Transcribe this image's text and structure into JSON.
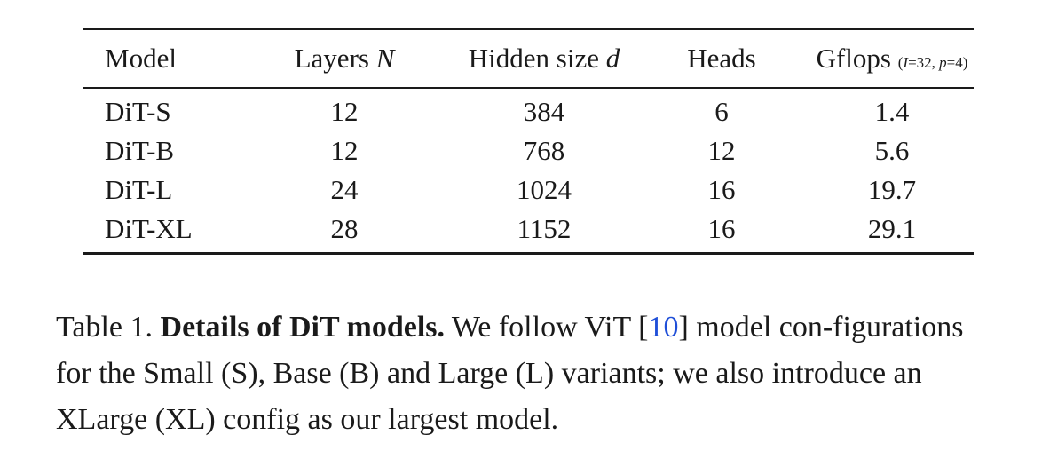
{
  "table": {
    "headers": {
      "model": "Model",
      "layers_text": "Layers ",
      "layers_sym": "N",
      "hidden_text": "Hidden size ",
      "hidden_sym": "d",
      "heads": "Heads",
      "gflops_text": "Gflops ",
      "gflops_note_open": "(",
      "gflops_note_I": "I",
      "gflops_note_mid": "=32, ",
      "gflops_note_p": "p",
      "gflops_note_end": "=4)"
    },
    "rows": [
      {
        "model": "DiT-S",
        "layers": "12",
        "hidden": "384",
        "heads": "6",
        "gflops": "1.4"
      },
      {
        "model": "DiT-B",
        "layers": "12",
        "hidden": "768",
        "heads": "12",
        "gflops": "5.6"
      },
      {
        "model": "DiT-L",
        "layers": "24",
        "hidden": "1024",
        "heads": "16",
        "gflops": "19.7"
      },
      {
        "model": "DiT-XL",
        "layers": "28",
        "hidden": "1152",
        "heads": "16",
        "gflops": "29.1"
      }
    ]
  },
  "caption": {
    "label": "Table 1. ",
    "bold": "Details of DiT models.",
    "text1": " We follow ViT [",
    "ref": "10",
    "text2": "] model con-figurations for the Small (S), Base (B) and Large (L) variants; we also introduce an XLarge (XL) config as our largest model."
  },
  "colors": {
    "text": "#1a1a1a",
    "reference_link": "#1f4fd8"
  }
}
